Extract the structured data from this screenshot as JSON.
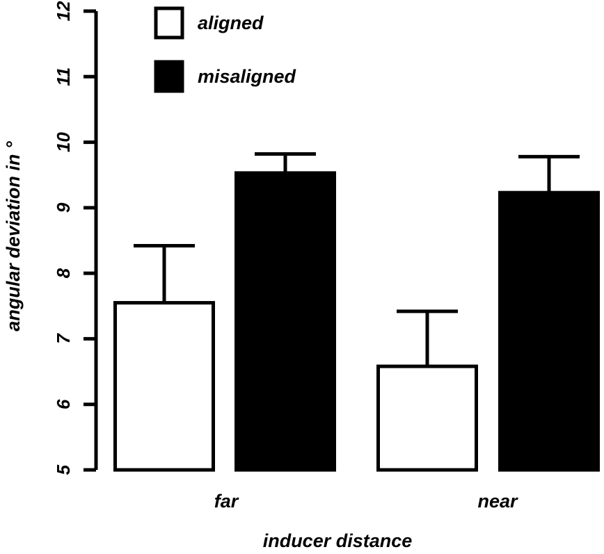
{
  "chart_data": {
    "type": "bar",
    "title": "",
    "xlabel": "inducer distance",
    "ylabel": "angular deviation in °",
    "ylim": [
      5,
      12
    ],
    "yticks": [
      "5",
      "6",
      "7",
      "8",
      "9",
      "10",
      "11",
      "12"
    ],
    "categories": [
      "far",
      "near"
    ],
    "series": [
      {
        "name": "aligned",
        "color": "#ffffff",
        "values": [
          7.55,
          6.58
        ],
        "error_upper": [
          8.42,
          7.42
        ]
      },
      {
        "name": "misaligned",
        "color": "#000000",
        "values": [
          9.53,
          9.23
        ],
        "error_upper": [
          9.82,
          9.78
        ]
      }
    ],
    "legend": "top-left",
    "grid": false
  }
}
